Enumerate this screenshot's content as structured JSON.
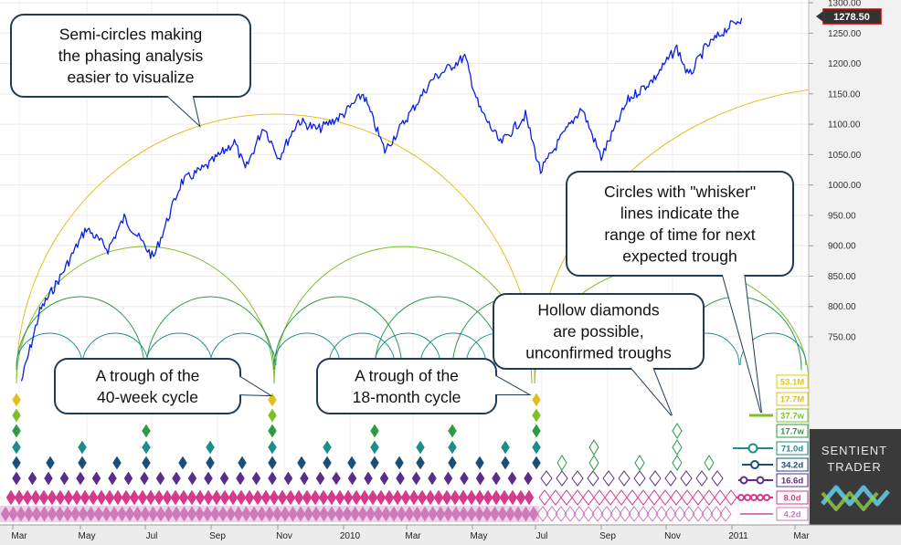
{
  "chart_data": {
    "type": "line",
    "title": "",
    "x_tick_labels": [
      "Mar",
      "May",
      "Jul",
      "Sep",
      "Nov",
      "2010",
      "Mar",
      "May",
      "Jul",
      "Sep",
      "Nov",
      "2011",
      "Mar"
    ],
    "y_tick_labels": [
      "1300.00",
      "1250.00",
      "1200.00",
      "1150.00",
      "1100.00",
      "1050.00",
      "1000.00",
      "950.00",
      "900.00",
      "850.00",
      "800.00",
      "750.00"
    ],
    "y_ticks": [
      1300,
      1250,
      1200,
      1150,
      1100,
      1050,
      1000,
      950,
      900,
      850,
      800,
      750
    ],
    "ylim": [
      700,
      1310
    ],
    "grid": true,
    "last_price": "1278.50",
    "series": [
      {
        "date": [
          "2009-03-09",
          "2009-03-26",
          "2009-04-15",
          "2009-05-08",
          "2009-05-28",
          "2009-06-12",
          "2009-07-09",
          "2009-08-04",
          "2009-08-27",
          "2009-09-22",
          "2009-10-02",
          "2009-10-19",
          "2009-11-02",
          "2009-11-20",
          "2009-12-08",
          "2009-12-31",
          "2010-01-19",
          "2010-02-08",
          "2010-02-26",
          "2010-03-24",
          "2010-04-23",
          "2010-05-06",
          "2010-05-26",
          "2010-06-18",
          "2010-07-02",
          "2010-07-19",
          "2010-08-09",
          "2010-08-27",
          "2010-09-21",
          "2010-10-15",
          "2010-11-05",
          "2010-11-16",
          "2010-12-01",
          "2010-12-22",
          "2011-01-04"
        ],
        "values": [
          677,
          792,
          852,
          929,
          894,
          946,
          880,
          1005,
          1030,
          1071,
          1025,
          1097,
          1045,
          1106,
          1091,
          1115,
          1150,
          1056,
          1104,
          1174,
          1211,
          1128,
          1068,
          1115,
          1022,
          1072,
          1127,
          1045,
          1140,
          1175,
          1226,
          1178,
          1225,
          1259,
          1275
        ]
      }
    ],
    "cycles": [
      {
        "label": "53.1M",
        "color": "#e5c800"
      },
      {
        "label": "17.7M",
        "color": "#e0c020"
      },
      {
        "label": "37.7w",
        "color": "#7fbf2a"
      },
      {
        "label": "17.7w",
        "color": "#2e9a44"
      },
      {
        "label": "71.0d",
        "color": "#1e8c8c"
      },
      {
        "label": "34.2d",
        "color": "#1a4f7a"
      },
      {
        "label": "16.6d",
        "color": "#5a2d8a"
      },
      {
        "label": "8.0d",
        "color": "#d63a8c"
      },
      {
        "label": "4.2d",
        "color": "#cc7abb"
      }
    ],
    "annotations": [
      {
        "text": [
          "Semi-circles making",
          "the phasing analysis",
          "easier to visualize"
        ]
      },
      {
        "text": [
          "Circles with \"whisker\"",
          "lines indicate the",
          "range of time for next",
          "expected trough"
        ]
      },
      {
        "text": [
          "Hollow diamonds",
          "are possible,",
          "unconfirmed troughs"
        ]
      },
      {
        "text": [
          "A trough of the",
          "40-week cycle"
        ]
      },
      {
        "text": [
          "A trough of the",
          "18-month cycle"
        ]
      }
    ]
  },
  "brand": {
    "line1": "SENTIENT",
    "line2": "TRADER"
  },
  "colors": {
    "price_line": "#0a1ee6",
    "background": "#ffffff",
    "grid": "#e9e9e9",
    "axis_panel": "#f1f1f1",
    "price_flag": "#333333",
    "price_flag_border": "#d40000"
  }
}
